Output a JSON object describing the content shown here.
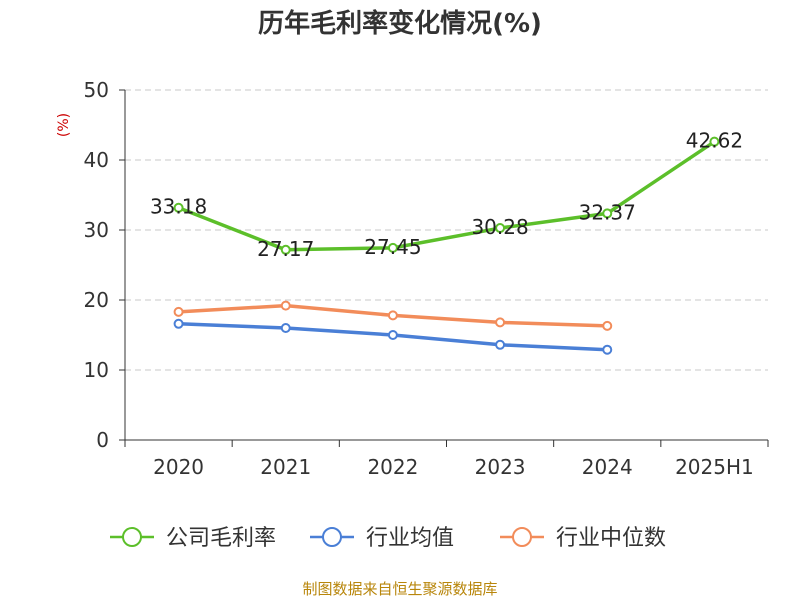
{
  "chart_data": {
    "type": "line",
    "title": "历年毛利率变化情况(%)",
    "ylabel": "(%)",
    "xlabel": "",
    "categories": [
      "2020",
      "2021",
      "2022",
      "2023",
      "2024",
      "2025H1"
    ],
    "ylim": [
      0,
      50
    ],
    "yticks": [
      0,
      10,
      20,
      30,
      40,
      50
    ],
    "grid": true,
    "legend_position": "bottom",
    "series": [
      {
        "name": "公司毛利率",
        "color": "#5cbf2a",
        "values": [
          33.18,
          27.17,
          27.45,
          30.28,
          32.37,
          42.62
        ],
        "labels": [
          "33.18",
          "27.17",
          "27.45",
          "30.28",
          "32.37",
          "42.62"
        ]
      },
      {
        "name": "行业均值",
        "color": "#4a7fd6",
        "values": [
          16.6,
          16.0,
          15.0,
          13.6,
          12.9,
          null
        ]
      },
      {
        "name": "行业中位数",
        "color": "#f28c5a",
        "values": [
          18.3,
          19.2,
          17.8,
          16.8,
          16.3,
          null
        ]
      }
    ]
  },
  "footer": {
    "source": "制图数据来自恒生聚源数据库"
  }
}
